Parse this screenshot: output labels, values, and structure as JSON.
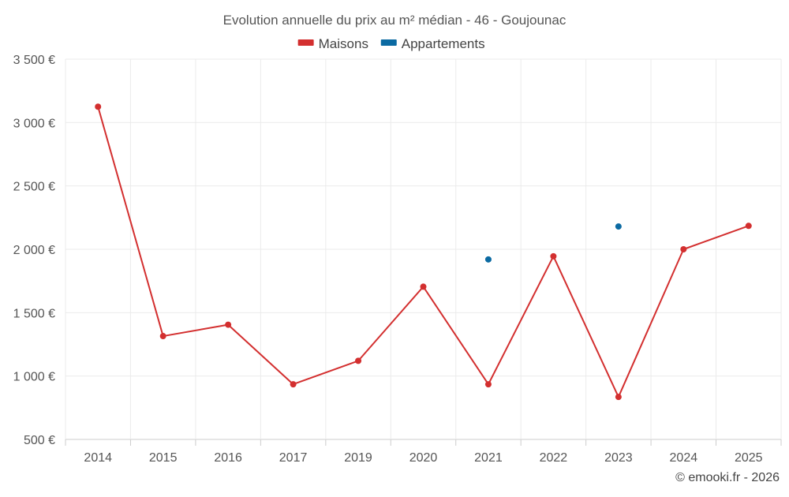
{
  "chart_data": {
    "type": "line",
    "title": "Evolution annuelle du prix au m² médian - 46 - Goujounac",
    "categories": [
      "2014",
      "2015",
      "2016",
      "2017",
      "2019",
      "2020",
      "2021",
      "2022",
      "2023",
      "2024",
      "2025"
    ],
    "series": [
      {
        "name": "Maisons",
        "color": "#d32f2f",
        "values": [
          3125,
          1315,
          1405,
          935,
          1120,
          1705,
          935,
          1945,
          835,
          2000,
          2185
        ]
      },
      {
        "name": "Appartements",
        "color": "#0b6aa2",
        "values": [
          null,
          null,
          null,
          null,
          null,
          null,
          1920,
          null,
          2180,
          null,
          null
        ]
      }
    ],
    "ylim": [
      500,
      3500
    ],
    "yticks": [
      {
        "value": 500,
        "label": "500 €"
      },
      {
        "value": 1000,
        "label": "1 000 €"
      },
      {
        "value": 1500,
        "label": "1 500 €"
      },
      {
        "value": 2000,
        "label": "2 000 €"
      },
      {
        "value": 2500,
        "label": "2 500 €"
      },
      {
        "value": 3000,
        "label": "3 000 €"
      },
      {
        "value": 3500,
        "label": "3 500 €"
      }
    ],
    "xlabel": "",
    "ylabel": "",
    "grid": true,
    "legend_position": "top-center",
    "footer": "© emooki.fr - 2026"
  }
}
